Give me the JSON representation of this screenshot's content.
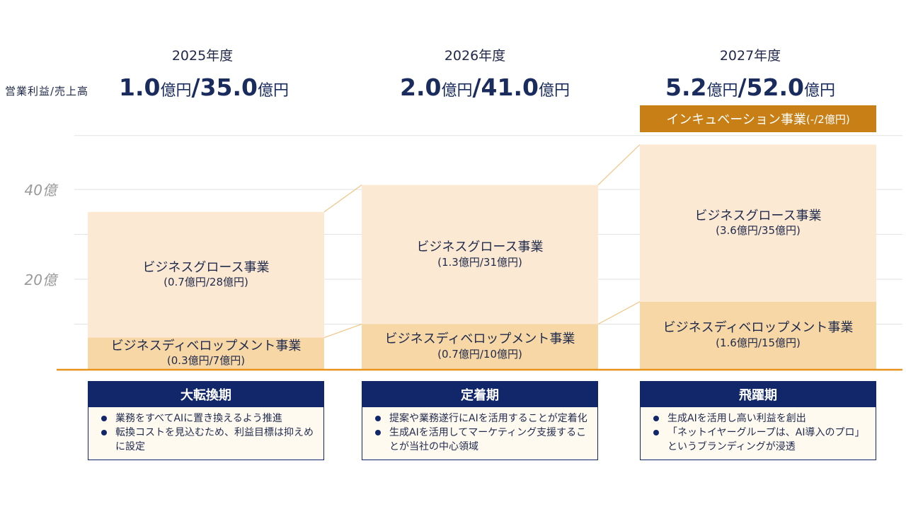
{
  "side_label": "営業利益/売上高",
  "years": [
    {
      "label": "2025年度",
      "op_profit": "1.0",
      "sales": "35.0",
      "unit": "億円"
    },
    {
      "label": "2026年度",
      "op_profit": "2.0",
      "sales": "41.0",
      "unit": "億円"
    },
    {
      "label": "2027年度",
      "op_profit": "5.2",
      "sales": "52.0",
      "unit": "億円"
    }
  ],
  "incubation": {
    "name": "インキュベーション事業",
    "value": "(-/2億円)"
  },
  "chart_data": {
    "type": "bar",
    "stacked": true,
    "categories": [
      "2025年度",
      "2026年度",
      "2027年度"
    ],
    "series": [
      {
        "name": "ビジネスディベロップメント事業",
        "values": [
          7,
          10,
          15
        ],
        "labels": [
          "(0.3億円/7億円)",
          "(0.7億円/10億円)",
          "(1.6億円/15億円)"
        ],
        "color": "#f6d7a5"
      },
      {
        "name": "ビジネスグロース事業",
        "values": [
          28,
          31,
          35
        ],
        "labels": [
          "(0.7億円/28億円)",
          "(1.3億円/31億円)",
          "(3.6億円/35億円)"
        ],
        "color": "#fce9d3"
      },
      {
        "name": "インキュベーション事業",
        "values": [
          0,
          0,
          2
        ],
        "labels": [
          "",
          "",
          "(-/2億円)"
        ],
        "color": "#c77f16"
      }
    ],
    "ytick_labels": [
      "20億",
      "40億"
    ],
    "yticks": [
      20,
      40
    ],
    "ylim": [
      0,
      55
    ],
    "grid": true,
    "accent": "#e8941a"
  },
  "phases": [
    {
      "title": "大転換期",
      "bullets": [
        "業務をすべてAIに置き換えるよう推進",
        "転換コストを見込むため、利益目標は抑えめに設定"
      ]
    },
    {
      "title": "定着期",
      "bullets": [
        "提案や業務遂行にAIを活用することが定着化",
        "生成AIを活用してマーケティング支援することが当社の中心領域"
      ]
    },
    {
      "title": "飛躍期",
      "bullets": [
        "生成AIを活用し高い利益を創出",
        "「ネットイヤーグループは、AI導入のプロ」というブランディングが浸透"
      ]
    }
  ]
}
